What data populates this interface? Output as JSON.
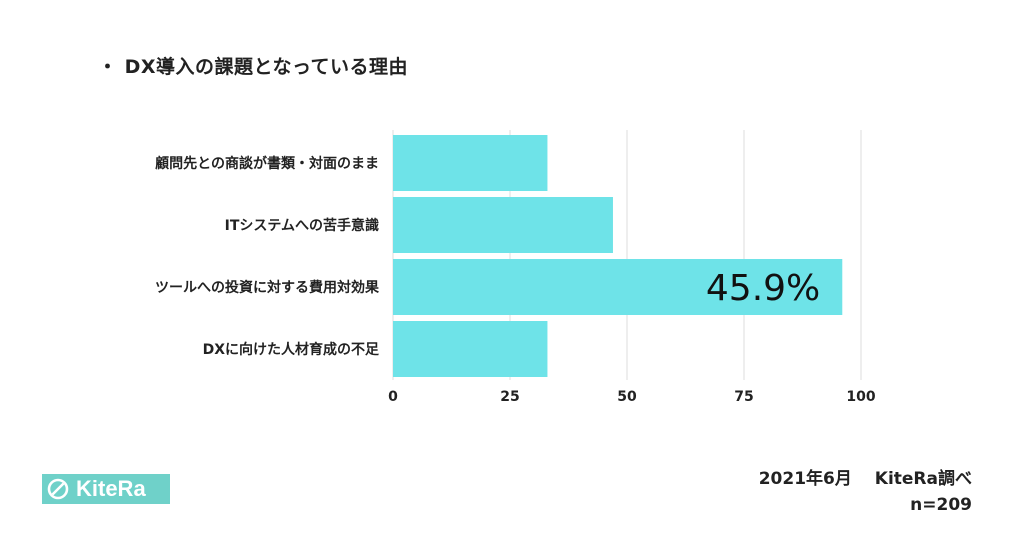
{
  "title": "・ DX導入の課題となっている理由",
  "colors": {
    "bar": "#6ee3e8",
    "grid": "#dddddd",
    "logo_bg": "#6fd1c9"
  },
  "chart_data": {
    "type": "bar",
    "orientation": "horizontal",
    "categories": [
      "顧問先との商談が書類・対面のまま",
      "ITシステムへの苦手意識",
      "ツールへの投資に対する費用対効果",
      "DXに向けた人材育成の不足"
    ],
    "values": [
      33,
      47,
      96,
      33
    ],
    "data_labels": [
      "",
      "",
      "45.9%",
      ""
    ],
    "xlim": [
      0,
      100
    ],
    "xticks": [
      0,
      25,
      50,
      75,
      100
    ],
    "grid": true
  },
  "logo": {
    "text": "KiteRa",
    "icon": "kitera-logo-icon"
  },
  "source": {
    "line1": "2021年6月　 KiteRa調べ",
    "line2": "n=209"
  }
}
